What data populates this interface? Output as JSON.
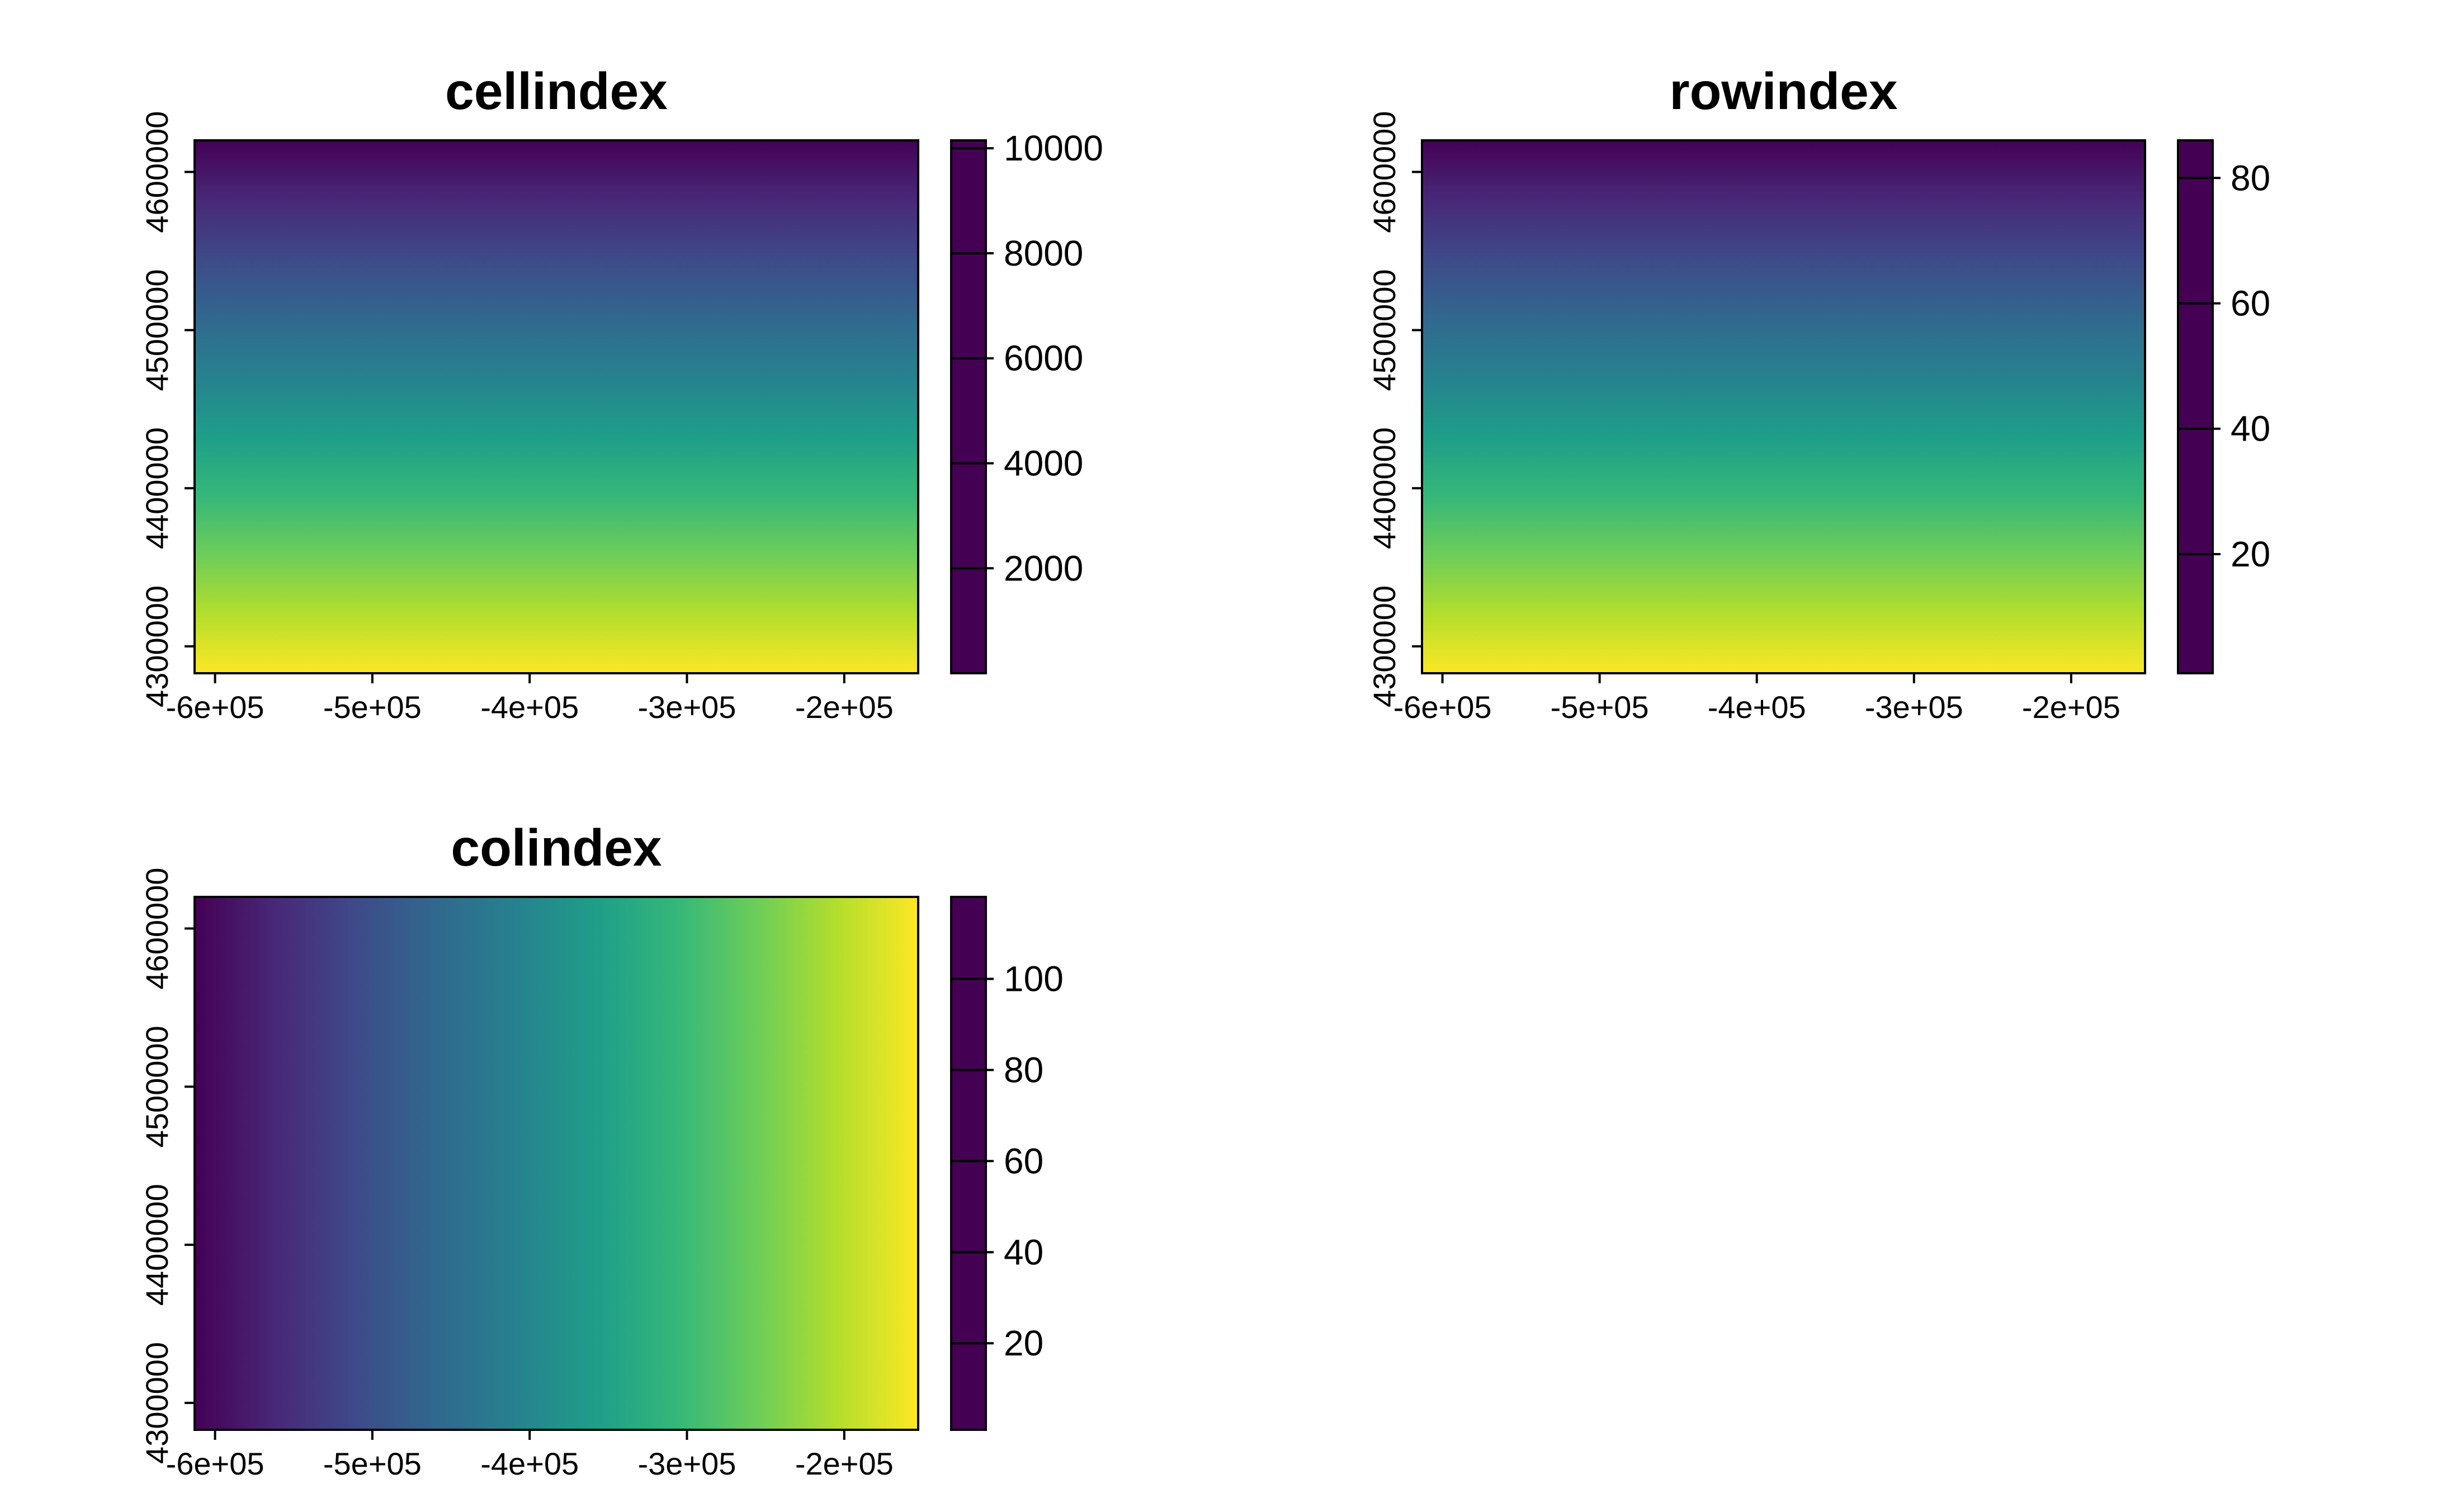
{
  "chart_data": [
    {
      "type": "heatmap",
      "title": "cellindex",
      "gradient_direction": "vertical",
      "x_ticks": [
        "-6e+05",
        "-5e+05",
        "-4e+05",
        "-3e+05",
        "-2e+05"
      ],
      "x_tick_values": [
        -600000,
        -500000,
        -400000,
        -300000,
        -200000
      ],
      "y_ticks": [
        "4300000",
        "4400000",
        "4500000",
        "4600000"
      ],
      "y_tick_values": [
        4300000,
        4400000,
        4500000,
        4600000
      ],
      "xlim": [
        -613000,
        -153000
      ],
      "ylim": [
        4283000,
        4620000
      ],
      "legend": {
        "ticks": [
          "10000",
          "8000",
          "6000",
          "4000",
          "2000"
        ],
        "tick_values": [
          10000,
          8000,
          6000,
          4000,
          2000
        ],
        "range": [
          1,
          10150
        ],
        "palette": "viridis"
      }
    },
    {
      "type": "heatmap",
      "title": "rowindex",
      "gradient_direction": "vertical",
      "x_ticks": [
        "-6e+05",
        "-5e+05",
        "-4e+05",
        "-3e+05",
        "-2e+05"
      ],
      "x_tick_values": [
        -600000,
        -500000,
        -400000,
        -300000,
        -200000
      ],
      "y_ticks": [
        "4300000",
        "4400000",
        "4500000",
        "4600000"
      ],
      "y_tick_values": [
        4300000,
        4400000,
        4500000,
        4600000
      ],
      "xlim": [
        -613000,
        -153000
      ],
      "ylim": [
        4283000,
        4620000
      ],
      "legend": {
        "ticks": [
          "80",
          "60",
          "40",
          "20"
        ],
        "tick_values": [
          80,
          60,
          40,
          20
        ],
        "range": [
          1,
          86
        ],
        "palette": "viridis"
      }
    },
    {
      "type": "heatmap",
      "title": "colindex",
      "gradient_direction": "horizontal",
      "x_ticks": [
        "-6e+05",
        "-5e+05",
        "-4e+05",
        "-3e+05",
        "-2e+05"
      ],
      "x_tick_values": [
        -600000,
        -500000,
        -400000,
        -300000,
        -200000
      ],
      "y_ticks": [
        "4300000",
        "4400000",
        "4500000",
        "4600000"
      ],
      "y_tick_values": [
        4300000,
        4400000,
        4500000,
        4600000
      ],
      "xlim": [
        -613000,
        -153000
      ],
      "ylim": [
        4283000,
        4620000
      ],
      "legend": {
        "ticks": [
          "100",
          "80",
          "60",
          "40",
          "20"
        ],
        "tick_values": [
          100,
          80,
          60,
          40,
          20
        ],
        "range": [
          1,
          118
        ],
        "palette": "viridis"
      }
    }
  ],
  "colors": {
    "viridis": [
      "#440154",
      "#482878",
      "#3E4A89",
      "#31688E",
      "#26828E",
      "#1F9E89",
      "#35B779",
      "#6DCD59",
      "#B4DE2C",
      "#FDE725"
    ],
    "axis": "#000000",
    "background": "#FFFFFF"
  }
}
